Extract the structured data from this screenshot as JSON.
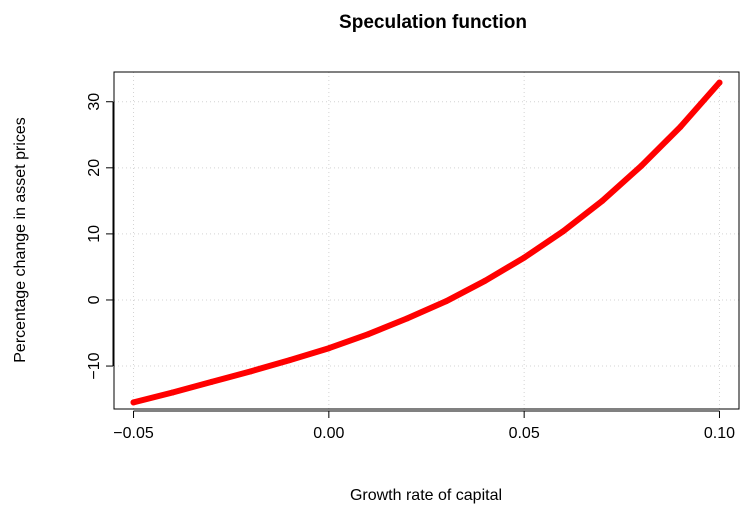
{
  "chart_data": {
    "type": "line",
    "title": "Speculation function",
    "xlabel": "Growth rate of capital",
    "ylabel": "Percentage change in asset prices",
    "xlim": [
      -0.055,
      0.105
    ],
    "ylim": [
      -16.5,
      34.5
    ],
    "x_ticks": [
      -0.05,
      0.0,
      0.05,
      0.1
    ],
    "x_tick_labels": [
      "−0.05",
      "0.00",
      "0.05",
      "0.10"
    ],
    "y_ticks": [
      -10,
      0,
      10,
      20,
      30
    ],
    "y_tick_labels": [
      "−10",
      "0",
      "10",
      "20",
      "30"
    ],
    "grid": true,
    "series": [
      {
        "color": "#ff0000",
        "x": [
          -0.05,
          -0.04,
          -0.03,
          -0.02,
          -0.01,
          0.0,
          0.01,
          0.02,
          0.03,
          0.04,
          0.05,
          0.06,
          0.07,
          0.08,
          0.09,
          0.1
        ],
        "y": [
          -15.5,
          -14.0,
          -12.4,
          -10.8,
          -9.1,
          -7.3,
          -5.2,
          -2.8,
          -0.2,
          2.9,
          6.4,
          10.4,
          15.0,
          20.3,
          26.2,
          32.9
        ]
      }
    ]
  }
}
